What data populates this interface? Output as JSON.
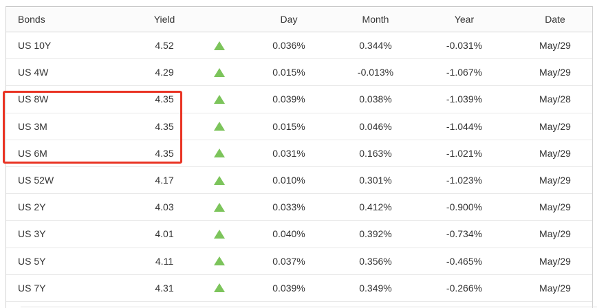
{
  "table": {
    "columns": [
      "Bonds",
      "Yield",
      "Day",
      "Month",
      "Year",
      "Date"
    ],
    "rows": [
      {
        "bond": "US 10Y",
        "yield": "4.52",
        "direction": "up",
        "day": "0.036%",
        "month": "0.344%",
        "year": "-0.031%",
        "date": "May/29",
        "highlighted": false
      },
      {
        "bond": "US 4W",
        "yield": "4.29",
        "direction": "up",
        "day": "0.015%",
        "month": "-0.013%",
        "year": "-1.067%",
        "date": "May/29",
        "highlighted": false
      },
      {
        "bond": "US 8W",
        "yield": "4.35",
        "direction": "up",
        "day": "0.039%",
        "month": "0.038%",
        "year": "-1.039%",
        "date": "May/28",
        "highlighted": true
      },
      {
        "bond": "US 3M",
        "yield": "4.35",
        "direction": "up",
        "day": "0.015%",
        "month": "0.046%",
        "year": "-1.044%",
        "date": "May/29",
        "highlighted": true
      },
      {
        "bond": "US 6M",
        "yield": "4.35",
        "direction": "up",
        "day": "0.031%",
        "month": "0.163%",
        "year": "-1.021%",
        "date": "May/29",
        "highlighted": true
      },
      {
        "bond": "US 52W",
        "yield": "4.17",
        "direction": "up",
        "day": "0.010%",
        "month": "0.301%",
        "year": "-1.023%",
        "date": "May/29",
        "highlighted": false
      },
      {
        "bond": "US 2Y",
        "yield": "4.03",
        "direction": "up",
        "day": "0.033%",
        "month": "0.412%",
        "year": "-0.900%",
        "date": "May/29",
        "highlighted": false
      },
      {
        "bond": "US 3Y",
        "yield": "4.01",
        "direction": "up",
        "day": "0.040%",
        "month": "0.392%",
        "year": "-0.734%",
        "date": "May/29",
        "highlighted": false
      },
      {
        "bond": "US 5Y",
        "yield": "4.11",
        "direction": "up",
        "day": "0.037%",
        "month": "0.356%",
        "year": "-0.465%",
        "date": "May/29",
        "highlighted": false
      },
      {
        "bond": "US 7Y",
        "yield": "4.31",
        "direction": "up",
        "day": "0.039%",
        "month": "0.349%",
        "year": "-0.266%",
        "date": "May/29",
        "highlighted": false
      }
    ]
  },
  "annotation": {
    "shape": "red-rectangle",
    "color": "#e93323",
    "covers_bonds": [
      "US 8W",
      "US 3M",
      "US 6M"
    ]
  },
  "colors": {
    "up_arrow_green": "#7cc45b",
    "text": "#333333",
    "table_border": "#c9c9c9",
    "row_border": "#e9e9e9",
    "header_background": "#fbfbfb"
  }
}
